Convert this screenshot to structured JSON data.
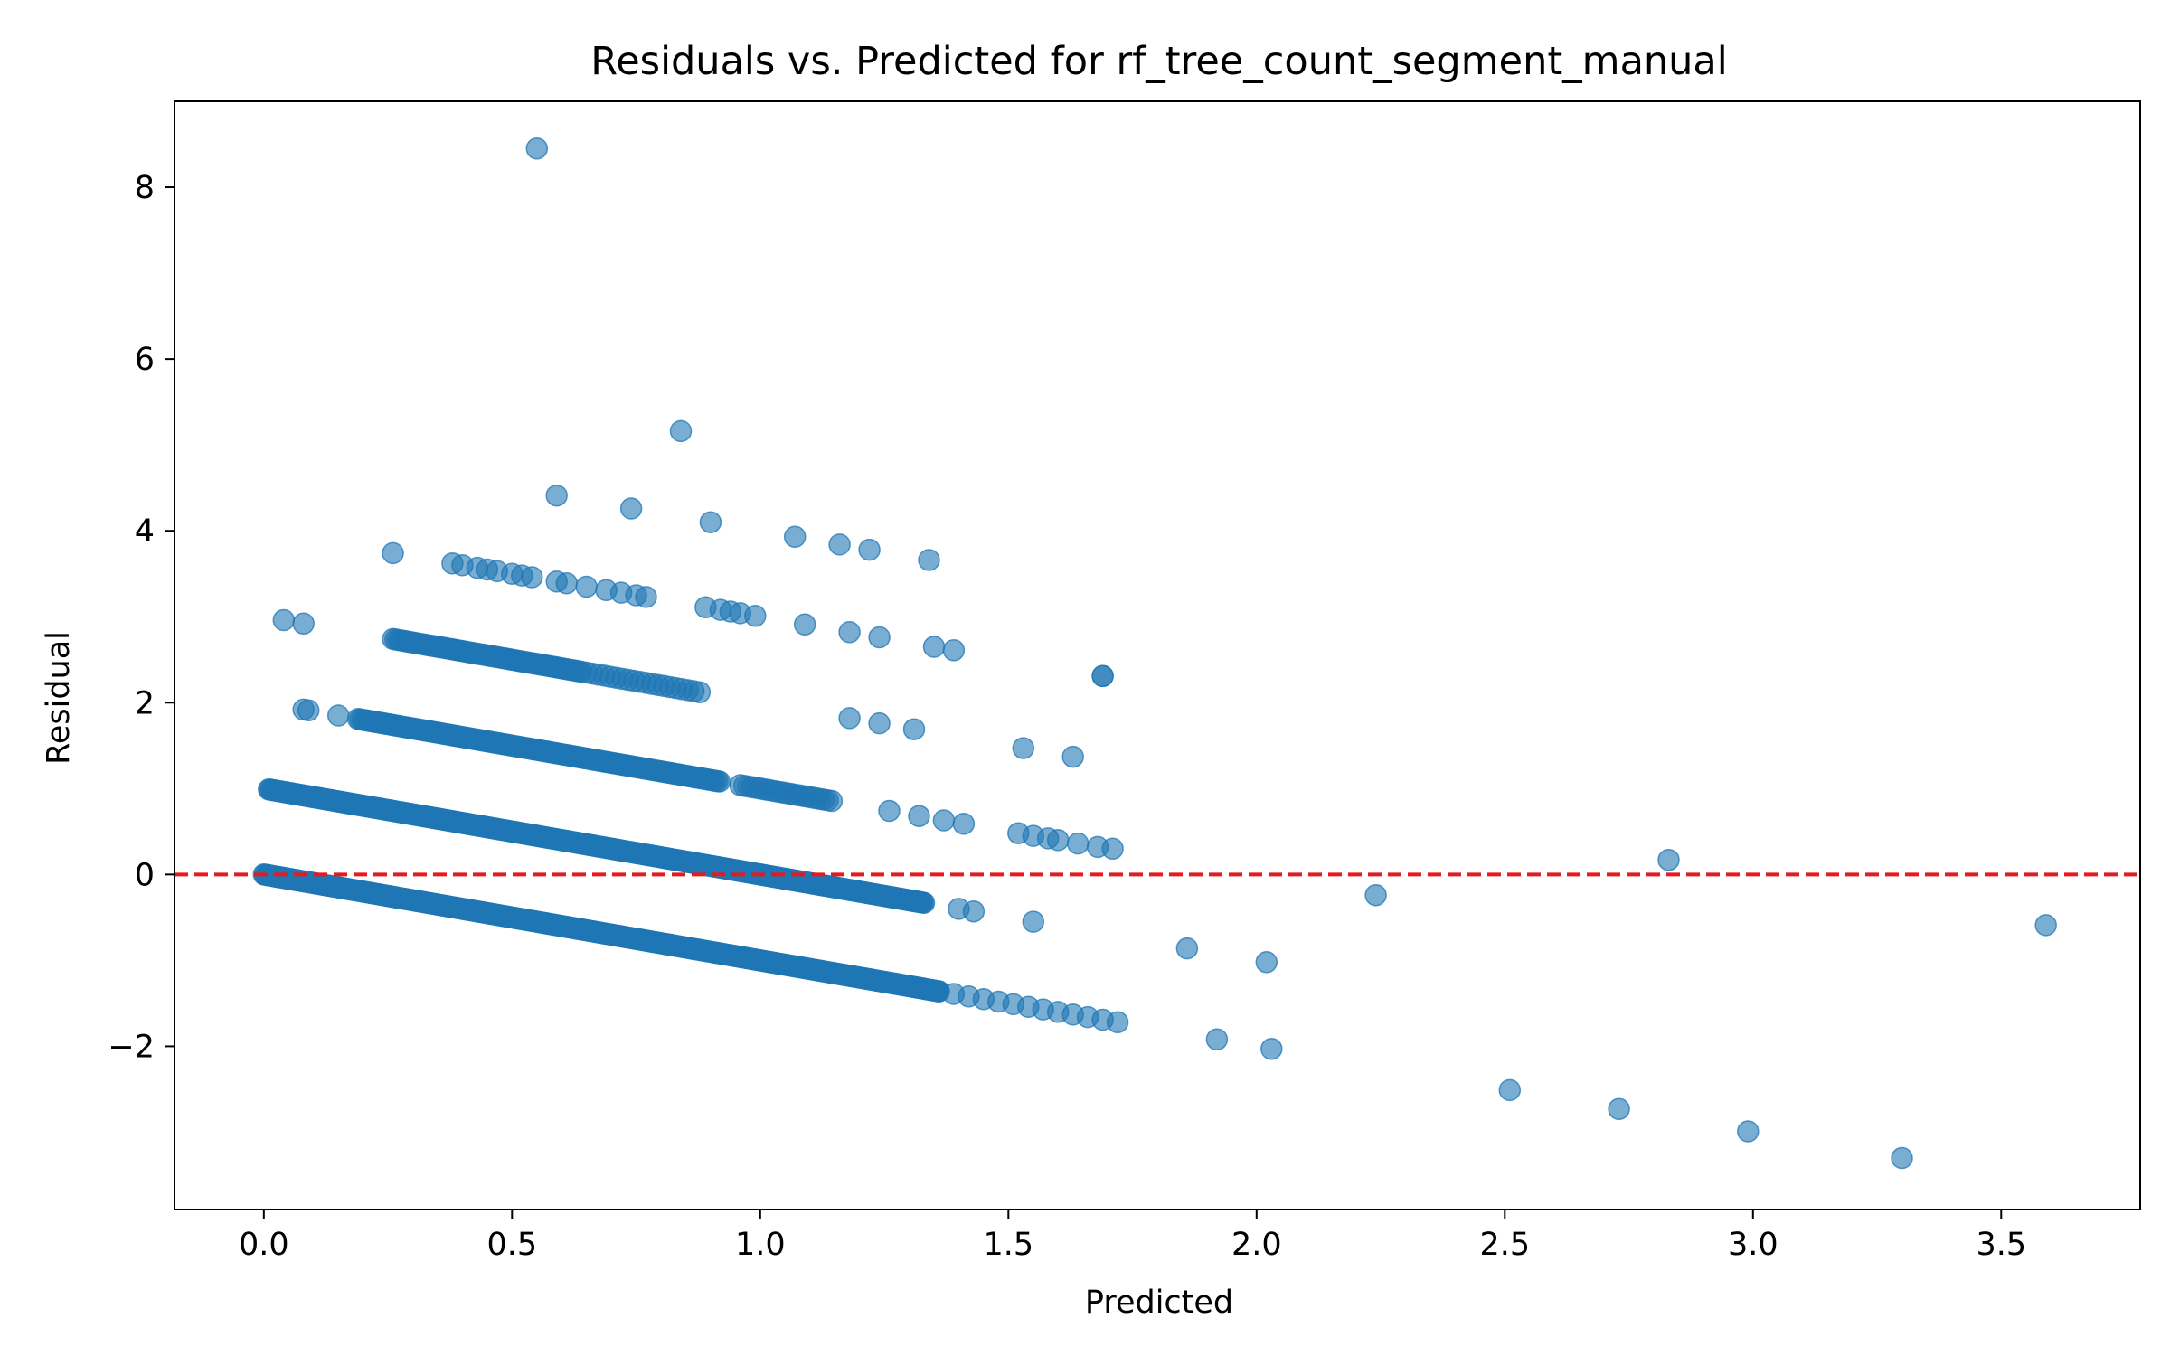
{
  "chart_data": {
    "type": "scatter",
    "title": "Residuals vs. Predicted for rf_tree_count_segment_manual",
    "xlabel": "Predicted",
    "ylabel": "Residual",
    "xlim": [
      -0.18,
      3.78
    ],
    "ylim": [
      -3.9,
      9.0
    ],
    "xticks": [
      0.0,
      0.5,
      1.0,
      1.5,
      2.0,
      2.5,
      3.0,
      3.5
    ],
    "xtick_labels": [
      "0.0",
      "0.5",
      "1.0",
      "1.5",
      "2.0",
      "2.5",
      "3.0",
      "3.5"
    ],
    "yticks": [
      -2,
      0,
      2,
      4,
      6,
      8
    ],
    "ytick_labels": [
      "−2",
      "0",
      "2",
      "4",
      "6",
      "8"
    ],
    "grid": false,
    "point_color": "#1f77b4",
    "point_alpha": 0.6,
    "reference_line": {
      "y": 0,
      "color": "#e41a1c",
      "style": "dashed"
    },
    "bands": [
      {
        "actual": 0,
        "x_from": 0.0,
        "x_to": 1.36,
        "step": 0.0025
      },
      {
        "actual": 0,
        "x_from": 1.36,
        "x_to": 1.74,
        "step": 0.03
      },
      {
        "actual": 1,
        "x_from": 0.01,
        "x_to": 1.33,
        "step": 0.0025
      },
      {
        "actual": 2,
        "x_from": 0.19,
        "x_to": 0.92,
        "step": 0.004
      },
      {
        "actual": 2,
        "x_from": 0.96,
        "x_to": 1.15,
        "step": 0.008
      },
      {
        "actual": 3,
        "x_from": 0.26,
        "x_to": 0.64,
        "step": 0.005
      },
      {
        "actual": 3,
        "x_from": 0.65,
        "x_to": 0.88,
        "step": 0.012
      }
    ],
    "points": [
      {
        "x": 0.55,
        "y": 8.45
      },
      {
        "x": 0.84,
        "y": 5.16
      },
      {
        "x": 0.59,
        "y": 4.41
      },
      {
        "x": 0.74,
        "y": 4.26
      },
      {
        "x": 0.9,
        "y": 4.1
      },
      {
        "x": 1.07,
        "y": 3.93
      },
      {
        "x": 1.16,
        "y": 3.84
      },
      {
        "x": 1.22,
        "y": 3.78
      },
      {
        "x": 1.34,
        "y": 3.66
      },
      {
        "x": 0.26,
        "y": 3.74
      },
      {
        "x": 0.38,
        "y": 3.62
      },
      {
        "x": 0.4,
        "y": 3.6
      },
      {
        "x": 0.43,
        "y": 3.57
      },
      {
        "x": 0.45,
        "y": 3.55
      },
      {
        "x": 0.47,
        "y": 3.53
      },
      {
        "x": 0.5,
        "y": 3.5
      },
      {
        "x": 0.52,
        "y": 3.48
      },
      {
        "x": 0.54,
        "y": 3.46
      },
      {
        "x": 0.59,
        "y": 3.41
      },
      {
        "x": 0.61,
        "y": 3.39
      },
      {
        "x": 0.65,
        "y": 3.35
      },
      {
        "x": 0.69,
        "y": 3.31
      },
      {
        "x": 0.72,
        "y": 3.28
      },
      {
        "x": 0.75,
        "y": 3.25
      },
      {
        "x": 0.77,
        "y": 3.23
      },
      {
        "x": 0.04,
        "y": 2.96
      },
      {
        "x": 0.08,
        "y": 2.92
      },
      {
        "x": 0.89,
        "y": 3.11
      },
      {
        "x": 0.92,
        "y": 3.08
      },
      {
        "x": 0.94,
        "y": 3.06
      },
      {
        "x": 0.96,
        "y": 3.04
      },
      {
        "x": 0.99,
        "y": 3.01
      },
      {
        "x": 1.09,
        "y": 2.91
      },
      {
        "x": 1.18,
        "y": 2.82
      },
      {
        "x": 1.24,
        "y": 2.76
      },
      {
        "x": 1.35,
        "y": 2.65
      },
      {
        "x": 1.39,
        "y": 2.61
      },
      {
        "x": 1.69,
        "y": 2.31
      },
      {
        "x": 1.69,
        "y": 2.31
      },
      {
        "x": 0.09,
        "y": 1.91
      },
      {
        "x": 0.08,
        "y": 1.92
      },
      {
        "x": 0.15,
        "y": 1.85
      },
      {
        "x": 1.18,
        "y": 1.82
      },
      {
        "x": 1.24,
        "y": 1.76
      },
      {
        "x": 1.31,
        "y": 1.69
      },
      {
        "x": 1.53,
        "y": 1.47
      },
      {
        "x": 1.63,
        "y": 1.37
      },
      {
        "x": 1.41,
        "y": 0.59
      },
      {
        "x": 1.37,
        "y": 0.63
      },
      {
        "x": 1.32,
        "y": 0.68
      },
      {
        "x": 1.26,
        "y": 0.74
      },
      {
        "x": 1.52,
        "y": 0.48
      },
      {
        "x": 1.55,
        "y": 0.45
      },
      {
        "x": 1.58,
        "y": 0.42
      },
      {
        "x": 1.6,
        "y": 0.4
      },
      {
        "x": 1.64,
        "y": 0.36
      },
      {
        "x": 1.68,
        "y": 0.32
      },
      {
        "x": 1.71,
        "y": 0.3
      },
      {
        "x": 1.4,
        "y": -0.4
      },
      {
        "x": 1.43,
        "y": -0.43
      },
      {
        "x": 1.55,
        "y": -0.55
      },
      {
        "x": 2.83,
        "y": 0.17
      },
      {
        "x": 2.24,
        "y": -0.24
      },
      {
        "x": 3.59,
        "y": -0.59
      },
      {
        "x": 1.86,
        "y": -0.86
      },
      {
        "x": 2.02,
        "y": -1.02
      },
      {
        "x": 1.92,
        "y": -1.92
      },
      {
        "x": 2.03,
        "y": -2.03
      },
      {
        "x": 2.51,
        "y": -2.51
      },
      {
        "x": 2.73,
        "y": -2.73
      },
      {
        "x": 2.99,
        "y": -2.99
      },
      {
        "x": 3.3,
        "y": -3.3
      }
    ]
  }
}
